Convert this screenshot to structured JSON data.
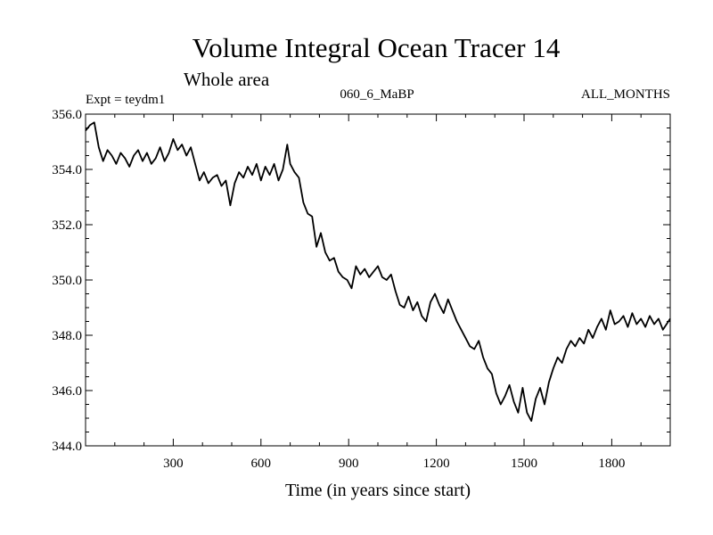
{
  "chart_data": {
    "type": "line",
    "title": "Volume Integral Ocean Tracer 14",
    "subtitle": "Whole area",
    "left_label": "Expt = teydm1",
    "center_label": "060_6_MaBP",
    "right_label": "ALL_MONTHS",
    "xlabel": "Time (in years since start)",
    "ylabel": "",
    "xlim": [
      0,
      2000
    ],
    "ylim": [
      344.0,
      356.0
    ],
    "x_ticks": [
      300,
      600,
      900,
      1200,
      1500,
      1800
    ],
    "y_ticks": [
      344.0,
      346.0,
      348.0,
      350.0,
      352.0,
      354.0,
      356.0
    ],
    "y_tick_labels": [
      "344.0",
      "346.0",
      "348.0",
      "350.0",
      "352.0",
      "354.0",
      "356.0"
    ],
    "line_color": "#000000",
    "series": [
      {
        "name": "Tracer 14",
        "x": [
          0,
          15,
          30,
          45,
          60,
          75,
          90,
          105,
          120,
          135,
          150,
          165,
          180,
          195,
          210,
          225,
          240,
          255,
          270,
          285,
          300,
          315,
          330,
          345,
          360,
          375,
          390,
          405,
          420,
          435,
          450,
          465,
          480,
          495,
          510,
          525,
          540,
          555,
          570,
          585,
          600,
          615,
          630,
          645,
          660,
          675,
          690,
          700,
          715,
          730,
          745,
          760,
          775,
          790,
          805,
          820,
          835,
          850,
          865,
          880,
          895,
          910,
          925,
          940,
          955,
          970,
          985,
          1000,
          1015,
          1030,
          1045,
          1060,
          1075,
          1090,
          1105,
          1120,
          1135,
          1150,
          1165,
          1180,
          1195,
          1210,
          1225,
          1240,
          1255,
          1270,
          1285,
          1300,
          1315,
          1330,
          1345,
          1360,
          1375,
          1390,
          1405,
          1420,
          1435,
          1450,
          1465,
          1480,
          1495,
          1510,
          1525,
          1540,
          1555,
          1570,
          1585,
          1600,
          1615,
          1630,
          1645,
          1660,
          1675,
          1690,
          1705,
          1720,
          1735,
          1750,
          1765,
          1780,
          1795,
          1810,
          1825,
          1840,
          1855,
          1870,
          1885,
          1900,
          1915,
          1930,
          1945,
          1960,
          1975,
          2000
        ],
        "values": [
          355.4,
          355.6,
          355.7,
          354.8,
          354.3,
          354.7,
          354.5,
          354.2,
          354.6,
          354.4,
          354.1,
          354.5,
          354.7,
          354.3,
          354.6,
          354.2,
          354.4,
          354.8,
          354.3,
          354.6,
          355.1,
          354.7,
          354.9,
          354.5,
          354.8,
          354.2,
          353.6,
          353.9,
          353.5,
          353.7,
          353.8,
          353.4,
          353.6,
          352.7,
          353.5,
          353.9,
          353.7,
          354.1,
          353.8,
          354.2,
          353.6,
          354.1,
          353.8,
          354.2,
          353.6,
          354.0,
          354.9,
          354.2,
          353.9,
          353.7,
          352.8,
          352.4,
          352.3,
          351.2,
          351.7,
          351.0,
          350.7,
          350.8,
          350.3,
          350.1,
          350.0,
          349.7,
          350.5,
          350.2,
          350.4,
          350.1,
          350.3,
          350.5,
          350.1,
          350.0,
          350.2,
          349.6,
          349.1,
          349.0,
          349.4,
          348.9,
          349.2,
          348.7,
          348.5,
          349.2,
          349.5,
          349.1,
          348.8,
          349.3,
          348.9,
          348.5,
          348.2,
          347.9,
          347.6,
          347.5,
          347.8,
          347.2,
          346.8,
          346.6,
          345.9,
          345.5,
          345.8,
          346.2,
          345.6,
          345.2,
          346.1,
          345.2,
          344.9,
          345.7,
          346.1,
          345.5,
          346.3,
          346.8,
          347.2,
          347.0,
          347.5,
          347.8,
          347.6,
          347.9,
          347.7,
          348.2,
          347.9,
          348.3,
          348.6,
          348.2,
          348.9,
          348.4,
          348.5,
          348.7,
          348.3,
          348.8,
          348.4,
          348.6,
          348.3,
          348.7,
          348.4,
          348.6,
          348.2,
          348.6
        ]
      }
    ]
  }
}
